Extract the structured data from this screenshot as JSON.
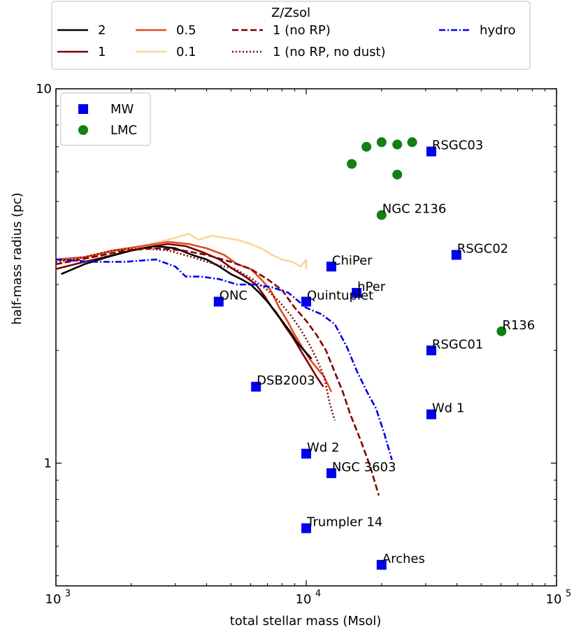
{
  "chart_data": {
    "type": "scatter",
    "xlabel": "total stellar mass (Msol)",
    "ylabel": "half-mass radius (pc)",
    "xscale": "log",
    "yscale": "log",
    "xlim": [
      1000,
      100000
    ],
    "ylim": [
      0.47,
      10
    ],
    "x_ticks": [
      {
        "value": 1000,
        "base": "10",
        "exp": "3"
      },
      {
        "value": 10000,
        "base": "10",
        "exp": "4"
      },
      {
        "value": 100000,
        "base": "10",
        "exp": "5"
      }
    ],
    "y_ticks": [
      {
        "value": 1,
        "label": "1"
      },
      {
        "value": 10,
        "label": "10"
      }
    ],
    "legend_top": {
      "title": "Z/Zsol",
      "placement": "above plot",
      "entries": [
        {
          "label": "2",
          "color": "#000000",
          "dash": "solid"
        },
        {
          "label": "1",
          "color": "#7f0000",
          "dash": "solid"
        },
        {
          "label": "0.5",
          "color": "#e34a1f",
          "dash": "solid"
        },
        {
          "label": "0.1",
          "color": "#fdd49e",
          "dash": "solid"
        },
        {
          "label": "1 (no RP)",
          "color": "#7f0000",
          "dash": "dashed"
        },
        {
          "label": "1 (no RP, no dust)",
          "color": "#7f0000",
          "dash": "dotted"
        },
        {
          "label": "hydro",
          "color": "#0000ee",
          "dash": "dashdot"
        }
      ]
    },
    "legend_inner": {
      "placement": "upper left",
      "entries": [
        {
          "label": "MW",
          "color": "#0000ee",
          "marker": "square"
        },
        {
          "label": "LMC",
          "color": "#128012",
          "marker": "circle"
        }
      ]
    },
    "scatter_series": [
      {
        "name": "MW",
        "color": "#0000ee",
        "marker": "square",
        "points": [
          {
            "x": 31600,
            "y": 6.8,
            "label": "RSGC03"
          },
          {
            "x": 39800,
            "y": 3.6,
            "label": "RSGC02"
          },
          {
            "x": 12600,
            "y": 3.35,
            "label": "ChiPer"
          },
          {
            "x": 15900,
            "y": 2.85,
            "label": "hPer"
          },
          {
            "x": 4470,
            "y": 2.7,
            "label": "ONC"
          },
          {
            "x": 10000,
            "y": 2.7,
            "label": "Quintuplet"
          },
          {
            "x": 31600,
            "y": 2.0,
            "label": "RSGC01"
          },
          {
            "x": 6300,
            "y": 1.6,
            "label": "DSB2003"
          },
          {
            "x": 31600,
            "y": 1.35,
            "label": "Wd 1"
          },
          {
            "x": 10000,
            "y": 1.06,
            "label": "Wd 2"
          },
          {
            "x": 12600,
            "y": 0.94,
            "label": "NGC 3603"
          },
          {
            "x": 10000,
            "y": 0.67,
            "label": "Trumpler 14"
          },
          {
            "x": 20000,
            "y": 0.535,
            "label": "Arches"
          }
        ]
      },
      {
        "name": "LMC",
        "color": "#128012",
        "marker": "circle",
        "points": [
          {
            "x": 15200,
            "y": 6.3,
            "label": ""
          },
          {
            "x": 17400,
            "y": 7.0,
            "label": ""
          },
          {
            "x": 20000,
            "y": 7.2,
            "label": ""
          },
          {
            "x": 23100,
            "y": 7.1,
            "label": ""
          },
          {
            "x": 26500,
            "y": 7.2,
            "label": ""
          },
          {
            "x": 23100,
            "y": 5.9,
            "label": ""
          },
          {
            "x": 20000,
            "y": 4.6,
            "label": "NGC 2136"
          },
          {
            "x": 60300,
            "y": 2.25,
            "label": "R136"
          }
        ]
      }
    ],
    "line_series": [
      {
        "name": "0.1",
        "color": "#fdd49e",
        "dash": "solid",
        "x": [
          1000,
          1200,
          1500,
          1800,
          2200,
          2600,
          3000,
          3400,
          3700,
          4200,
          4700,
          5300,
          6000,
          6600,
          7300,
          8000,
          8800,
          9500,
          10000,
          10000
        ],
        "y": [
          3.4,
          3.5,
          3.6,
          3.7,
          3.8,
          3.9,
          4.0,
          4.1,
          3.95,
          4.05,
          4.0,
          3.95,
          3.85,
          3.75,
          3.6,
          3.5,
          3.45,
          3.35,
          3.5,
          3.3
        ]
      },
      {
        "name": "0.5",
        "color": "#e34a1f",
        "dash": "solid",
        "x": [
          1000,
          1300,
          1700,
          2200,
          2800,
          3400,
          4000,
          4700,
          5300,
          6000,
          6600,
          7200,
          7800,
          8400,
          9000,
          9600,
          10300,
          11000,
          11800,
          12600
        ],
        "y": [
          3.5,
          3.55,
          3.7,
          3.8,
          3.9,
          3.85,
          3.75,
          3.6,
          3.4,
          3.3,
          3.1,
          2.9,
          2.6,
          2.4,
          2.2,
          2.05,
          1.9,
          1.8,
          1.7,
          1.55
        ]
      },
      {
        "name": "1",
        "color": "#7f0000",
        "dash": "solid",
        "x": [
          1000,
          1300,
          1700,
          2200,
          2800,
          3300,
          3900,
          4500,
          5100,
          5700,
          6300,
          6800,
          7300,
          7800,
          8300,
          8900,
          9500,
          10200,
          11000,
          11700
        ],
        "y": [
          3.3,
          3.45,
          3.6,
          3.75,
          3.85,
          3.8,
          3.65,
          3.5,
          3.3,
          3.15,
          3.0,
          2.8,
          2.6,
          2.45,
          2.3,
          2.15,
          2.0,
          1.85,
          1.7,
          1.6
        ]
      },
      {
        "name": "2",
        "color": "#000000",
        "dash": "solid",
        "x": [
          1050,
          1300,
          1600,
          2000,
          2500,
          3000,
          3500,
          4000,
          4500,
          5000,
          5500,
          6000,
          6500,
          7000,
          7500,
          8000,
          8600,
          9200,
          9800,
          10500
        ],
        "y": [
          3.2,
          3.4,
          3.55,
          3.7,
          3.8,
          3.75,
          3.6,
          3.5,
          3.35,
          3.2,
          3.1,
          3.0,
          2.85,
          2.7,
          2.55,
          2.4,
          2.25,
          2.1,
          2.0,
          1.9
        ]
      },
      {
        "name": "1 (no RP)",
        "color": "#7f0000",
        "dash": "dashed",
        "x": [
          1000,
          1400,
          1900,
          2500,
          3200,
          4000,
          5000,
          6000,
          7000,
          8000,
          9000,
          10000,
          11000,
          12000,
          13000,
          14000,
          15000,
          16500,
          18000,
          19500
        ],
        "y": [
          3.4,
          3.55,
          3.7,
          3.75,
          3.7,
          3.6,
          3.45,
          3.3,
          3.1,
          2.9,
          2.6,
          2.4,
          2.2,
          2.0,
          1.75,
          1.55,
          1.35,
          1.15,
          0.98,
          0.82
        ]
      },
      {
        "name": "1 (no RP, no dust)",
        "color": "#7f0000",
        "dash": "dotted",
        "x": [
          1000,
          1300,
          1700,
          2200,
          2800,
          3500,
          4300,
          5200,
          6100,
          7000,
          7800,
          8600,
          9400,
          10200,
          11000,
          11800,
          12400,
          13000
        ],
        "y": [
          3.45,
          3.55,
          3.7,
          3.75,
          3.7,
          3.55,
          3.4,
          3.3,
          3.1,
          2.9,
          2.7,
          2.5,
          2.3,
          2.1,
          1.9,
          1.7,
          1.45,
          1.3
        ]
      },
      {
        "name": "hydro",
        "color": "#0000ee",
        "dash": "dashdot",
        "x": [
          1000,
          1400,
          1900,
          2500,
          3000,
          3300,
          3800,
          4500,
          5300,
          6200,
          7300,
          8500,
          10000,
          11500,
          13000,
          14500,
          16000,
          17500,
          19000,
          20500,
          22000
        ],
        "y": [
          3.5,
          3.45,
          3.45,
          3.5,
          3.35,
          3.15,
          3.15,
          3.1,
          3.0,
          3.0,
          2.95,
          2.85,
          2.6,
          2.5,
          2.35,
          2.05,
          1.75,
          1.55,
          1.4,
          1.2,
          1.02
        ]
      }
    ]
  }
}
